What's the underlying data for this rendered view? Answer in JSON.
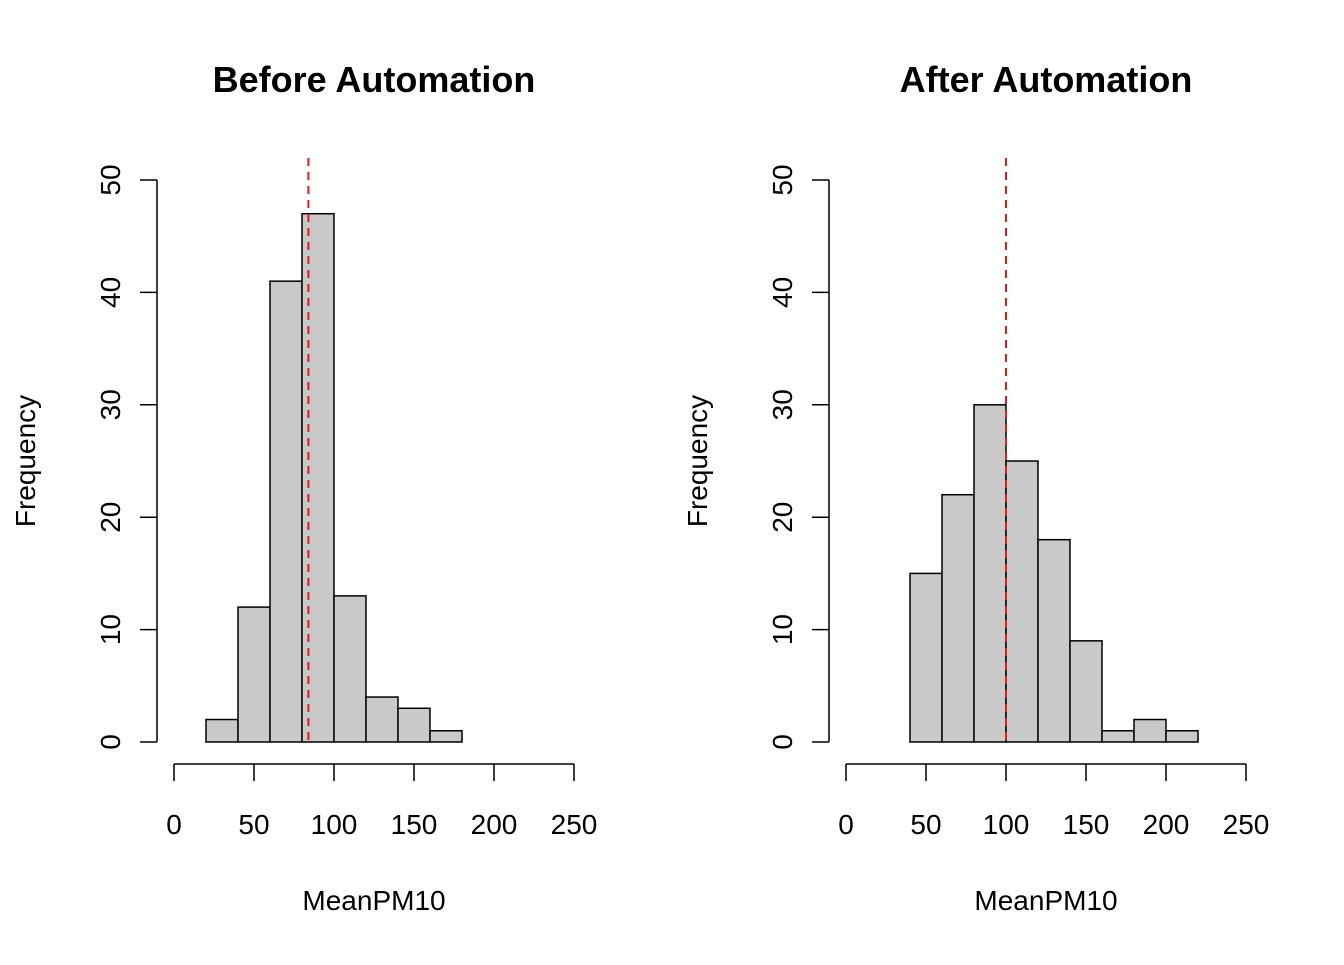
{
  "colors": {
    "bar_fill": "#c9c9c9",
    "bar_stroke": "#000000",
    "mean_line": "#e31a1c",
    "axis": "#000000"
  },
  "chart_data": [
    {
      "type": "histogram",
      "title": "Before Automation",
      "xlabel": "MeanPM10",
      "ylabel": "Frequency",
      "xlim": [
        0,
        250
      ],
      "ylim": [
        0,
        50
      ],
      "xticks": [
        0,
        50,
        100,
        150,
        200,
        250
      ],
      "yticks": [
        0,
        10,
        20,
        30,
        40,
        50
      ],
      "bins": [
        {
          "start": 20,
          "end": 40,
          "count": 2
        },
        {
          "start": 40,
          "end": 60,
          "count": 12
        },
        {
          "start": 60,
          "end": 80,
          "count": 41
        },
        {
          "start": 80,
          "end": 100,
          "count": 47
        },
        {
          "start": 100,
          "end": 120,
          "count": 13
        },
        {
          "start": 120,
          "end": 140,
          "count": 4
        },
        {
          "start": 140,
          "end": 160,
          "count": 3
        },
        {
          "start": 160,
          "end": 180,
          "count": 1
        }
      ],
      "mean_line": 84
    },
    {
      "type": "histogram",
      "title": "After Automation",
      "xlabel": "MeanPM10",
      "ylabel": "Frequency",
      "xlim": [
        0,
        250
      ],
      "ylim": [
        0,
        50
      ],
      "xticks": [
        0,
        50,
        100,
        150,
        200,
        250
      ],
      "yticks": [
        0,
        10,
        20,
        30,
        40,
        50
      ],
      "bins": [
        {
          "start": 40,
          "end": 60,
          "count": 15
        },
        {
          "start": 60,
          "end": 80,
          "count": 22
        },
        {
          "start": 80,
          "end": 100,
          "count": 30
        },
        {
          "start": 100,
          "end": 120,
          "count": 25
        },
        {
          "start": 120,
          "end": 140,
          "count": 18
        },
        {
          "start": 140,
          "end": 160,
          "count": 9
        },
        {
          "start": 160,
          "end": 180,
          "count": 1
        },
        {
          "start": 180,
          "end": 200,
          "count": 2
        },
        {
          "start": 200,
          "end": 220,
          "count": 1
        }
      ],
      "mean_line": 100
    }
  ]
}
